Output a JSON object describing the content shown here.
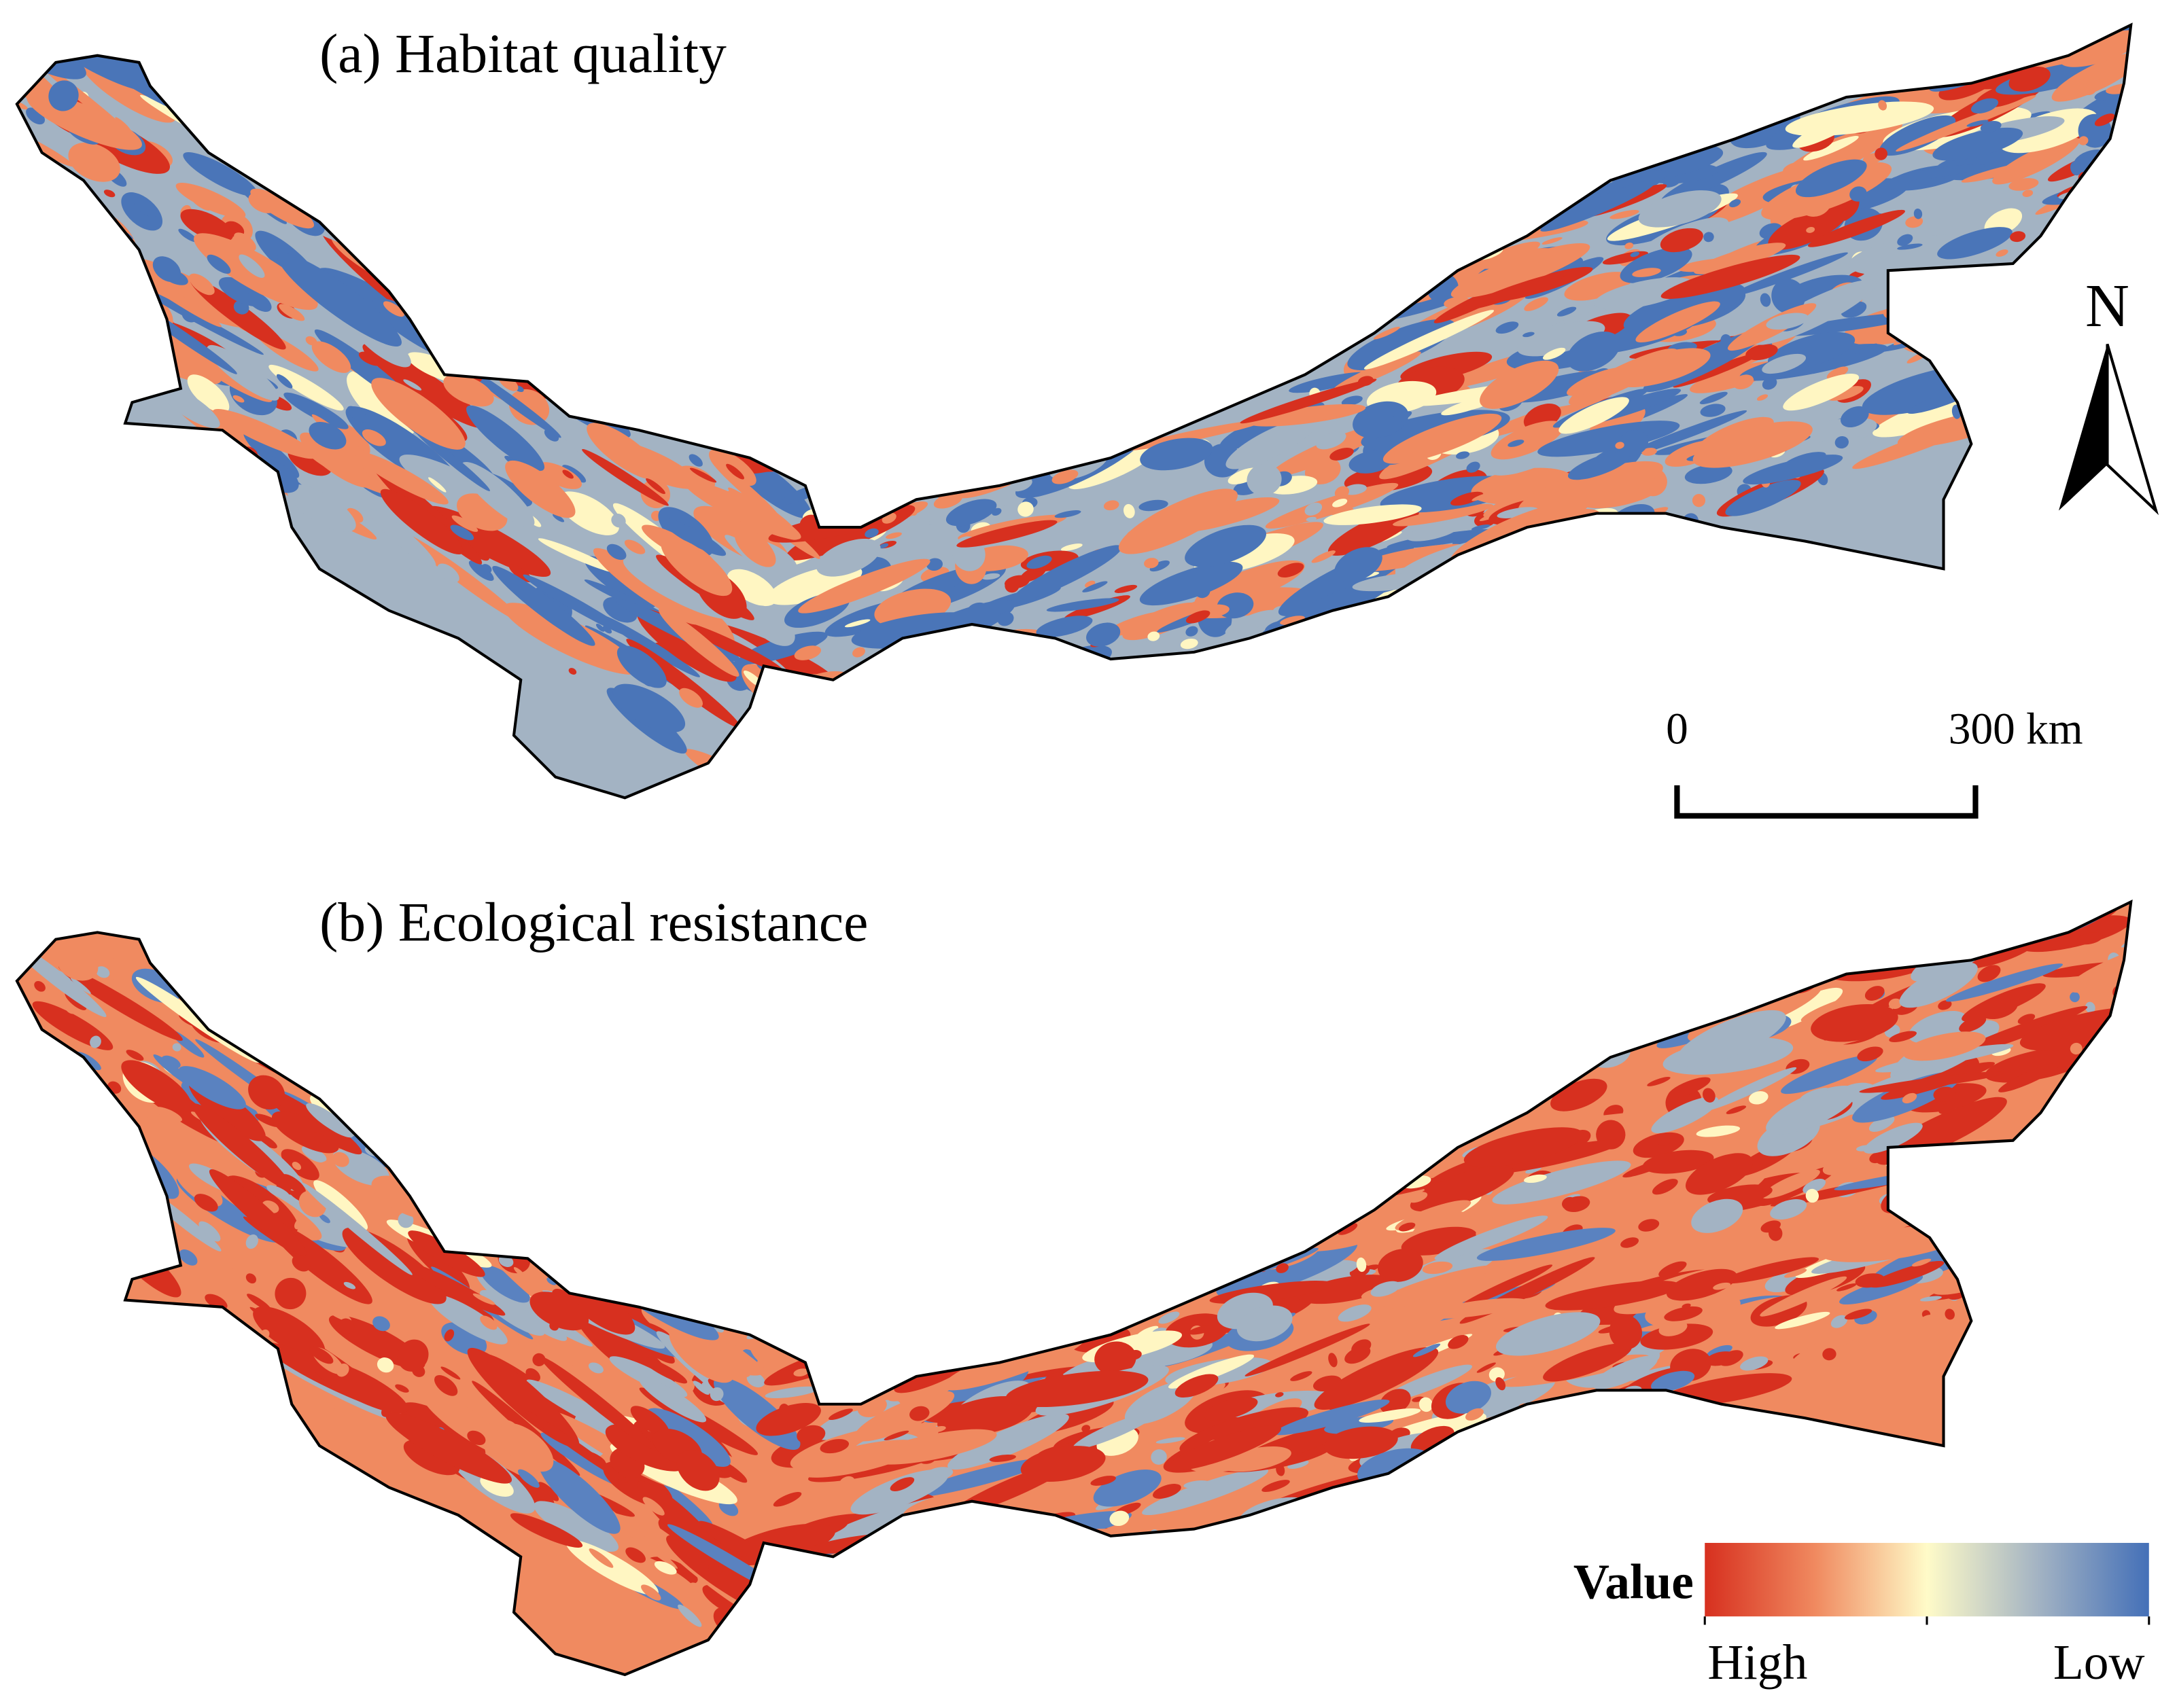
{
  "panels": [
    {
      "title": "(a) Habitat quality"
    },
    {
      "title": "(b) Ecological resistance"
    }
  ],
  "north_arrow": {
    "label": "N"
  },
  "scale_bar": {
    "labels": [
      "0",
      "300 km"
    ]
  },
  "legend": {
    "title": "Value",
    "labels": [
      "High",
      "Low"
    ]
  }
}
